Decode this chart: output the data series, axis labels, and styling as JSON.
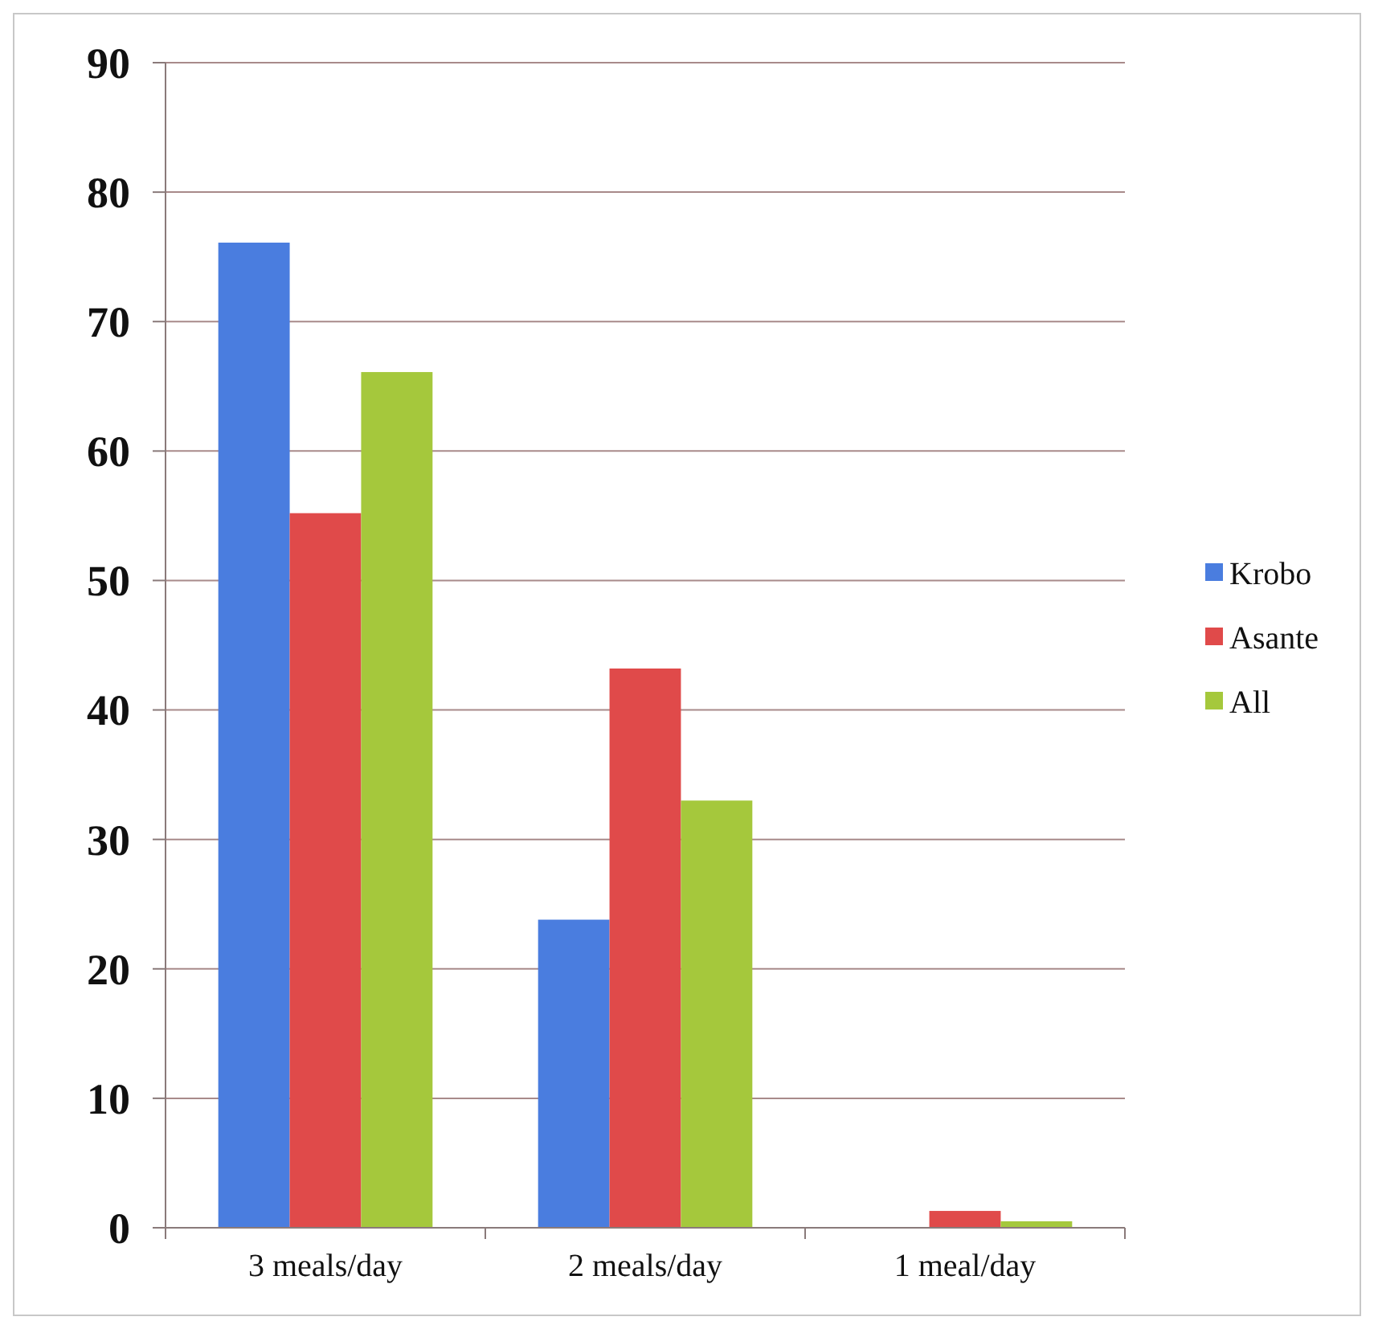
{
  "chart_data": {
    "type": "bar",
    "categories": [
      "3 meals/day",
      "2 meals/day",
      "1 meal/day"
    ],
    "series": [
      {
        "name": "Krobo",
        "color": "#4a7ddf",
        "values": [
          76.1,
          23.8,
          0
        ]
      },
      {
        "name": "Asante",
        "color": "#e04a4a",
        "values": [
          55.2,
          43.2,
          1.3
        ]
      },
      {
        "name": "All",
        "color": "#a5c83c",
        "values": [
          66.1,
          33.0,
          0.5
        ]
      }
    ],
    "ylim": [
      0,
      90
    ],
    "yticks": [
      0,
      10,
      20,
      30,
      40,
      50,
      60,
      70,
      80,
      90
    ],
    "grid": "y",
    "legend": "right"
  }
}
